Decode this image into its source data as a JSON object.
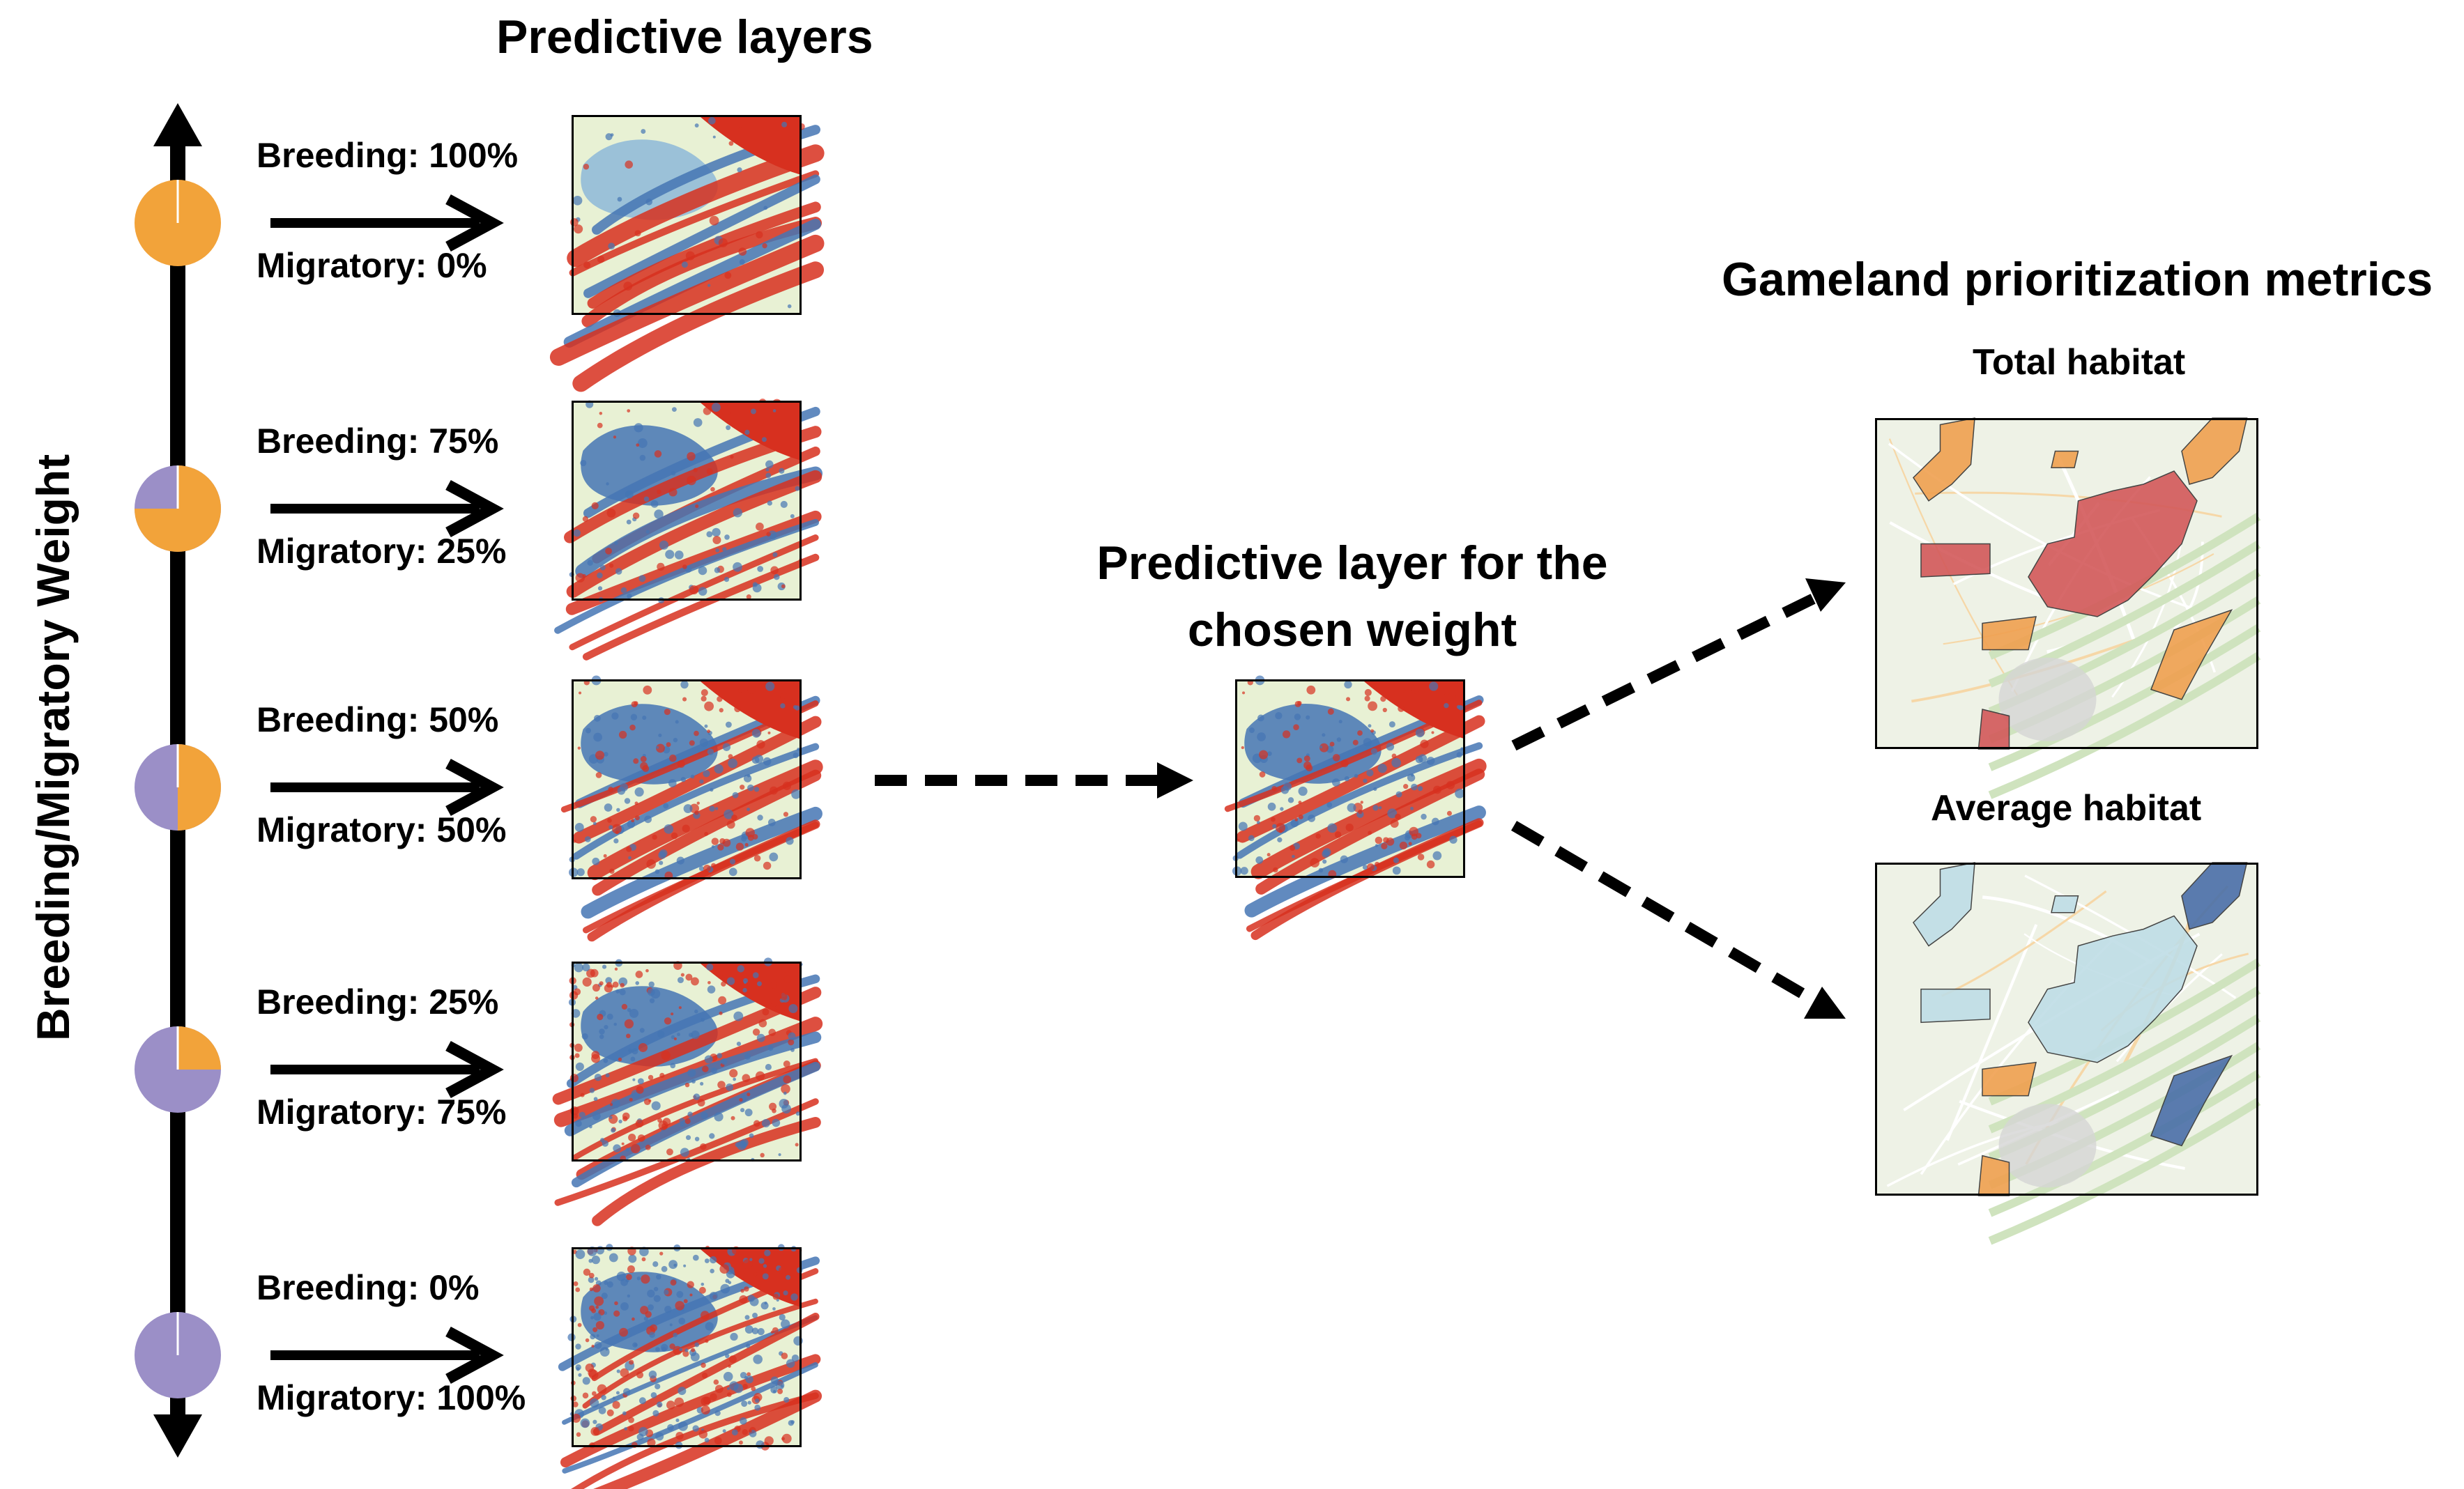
{
  "headings": {
    "predictive_layers": "Predictive layers",
    "chosen_layer_line1": "Predictive layer for the",
    "chosen_layer_line2": "chosen weight",
    "gameland_metrics": "Gameland prioritization metrics",
    "total_habitat": "Total habitat",
    "average_habitat": "Average habitat"
  },
  "axis_label": "Breeding/Migratory Weight",
  "weights": [
    {
      "breeding_label": "Breeding: 100%",
      "migratory_label": "Migratory: 0%",
      "breeding_fraction": 1.0
    },
    {
      "breeding_label": "Breeding: 75%",
      "migratory_label": "Migratory: 25%",
      "breeding_fraction": 0.75
    },
    {
      "breeding_label": "Breeding: 50%",
      "migratory_label": "Migratory: 50%",
      "breeding_fraction": 0.5
    },
    {
      "breeding_label": "Breeding: 25%",
      "migratory_label": "Migratory: 75%",
      "breeding_fraction": 0.25
    },
    {
      "breeding_label": "Breeding: 0%",
      "migratory_label": "Migratory: 100%",
      "breeding_fraction": 0.0
    }
  ],
  "colors": {
    "breeding": "#F2A33A",
    "migratory": "#9B8FC7",
    "arrow": "#000000",
    "map_red": "#D7301F",
    "map_blue": "#4575B4",
    "map_light": "#E8F1D4",
    "map_base": "#EEF2E6",
    "parcel_red": "#D3595A",
    "parcel_orange": "#F0A050",
    "parcel_blue": "#4A6FA8",
    "parcel_lightblue": "#BFDDE6"
  }
}
